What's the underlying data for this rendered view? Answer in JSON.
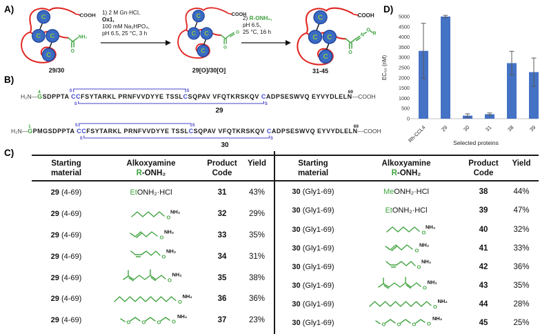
{
  "colors": {
    "green": "#3FA33F",
    "red": "#E02420",
    "cfill": "#3A6BC5",
    "cstroke": "#24479B",
    "cletter": "#8CC63F",
    "cys": "#3F48CC",
    "ss": "#4646C8"
  },
  "panel_labels": {
    "a": "A)",
    "b": "B)",
    "c": "C)",
    "d": "D)"
  },
  "scheme": {
    "cooh": "COOH",
    "nh2": "NH₂",
    "o_label": "O",
    "residue": "C",
    "oxime_n": "N",
    "oxime_o": "O",
    "oxime_r": "R",
    "step1_line1": "1) 2 M Gn·HCl,",
    "step1_line2": "Ox1,",
    "step1_line3": "100 mM Na₂HPO₄,",
    "step1_line4": "pH 6.5, 25 °C, 3 h",
    "step2_prefix": "2) ",
    "step2_reagent": "R-ONH₂,",
    "step2_line2": "pH 6.5,",
    "step2_line3": "25 °C, 16 h",
    "start_label": "29/30",
    "intermediate_label": "29[O]/30[O]",
    "product_label": "31-45"
  },
  "sequences": {
    "ss_label": "S",
    "items": [
      {
        "label": "29",
        "prefix": "H₂N—",
        "start_num": "4",
        "start_res": "G",
        "body": "SDPPTA CCFSYTARKL PRNFVVDYYE TSSLCSQPAV VFQTKRSKQV CADPSESWVQ EYVYDLELN",
        "end_num": "69",
        "suffix": "—COOH"
      },
      {
        "label": "30",
        "prefix": "H₂N—",
        "start_num": "1",
        "start_res": "G",
        "body": "PMGSDPPTA CCFSYTARKL PRNFVVDYYE TSSLCSQPAV VFQTKRSKQV CADPSESWVQ EYVYDLELN",
        "end_num": "69",
        "suffix": "—COOH"
      }
    ]
  },
  "tables": {
    "o_label": "O",
    "nh2_label": "NH₂",
    "headers": {
      "col1_line1": "Starting",
      "col1_line2": "material",
      "col2_line1": "Alkoxyamine",
      "col2_r": "R",
      "col2_rest": "-ONH₂",
      "col3_line1": "Product",
      "col3_line2": "Code",
      "col4": "Yield"
    },
    "left_rows": [
      {
        "sm": "29",
        "range": "(4-69)",
        "struct": "text",
        "reagent_green": "Et",
        "reagent_black": "ONH₂·HCl",
        "code": "31",
        "yield": "43%"
      },
      {
        "sm": "29",
        "range": "(4-69)",
        "struct": "hexyl",
        "code": "32",
        "yield": "29%"
      },
      {
        "sm": "29",
        "range": "(4-69)",
        "struct": "hexenyl_trans",
        "code": "33",
        "yield": "35%"
      },
      {
        "sm": "29",
        "range": "(4-69)",
        "struct": "hexenyl_cis",
        "code": "34",
        "yield": "31%"
      },
      {
        "sm": "29",
        "range": "(4-69)",
        "struct": "geranyl",
        "code": "35",
        "yield": "38%"
      },
      {
        "sm": "29",
        "range": "(4-69)",
        "struct": "dodecyl",
        "code": "36",
        "yield": "36%"
      },
      {
        "sm": "29",
        "range": "(4-69)",
        "struct": "teg",
        "code": "37",
        "yield": "23%"
      }
    ],
    "right_rows": [
      {
        "sm": "30",
        "range": "(Gly1-69)",
        "struct": "text",
        "reagent_green": "Me",
        "reagent_black": "ONH₂·HCl",
        "code": "38",
        "yield": "44%"
      },
      {
        "sm": "30",
        "range": "(Gly1-69)",
        "struct": "text",
        "reagent_green": "Et",
        "reagent_black": "ONH₂·HCl",
        "code": "39",
        "yield": "47%"
      },
      {
        "sm": "30",
        "range": "(Gly1-69)",
        "struct": "hexyl",
        "code": "40",
        "yield": "32%"
      },
      {
        "sm": "30",
        "range": "(Gly1-69)",
        "struct": "hexenyl_trans",
        "code": "41",
        "yield": "33%"
      },
      {
        "sm": "30",
        "range": "(Gly1-69)",
        "struct": "hexenyl_cis",
        "code": "42",
        "yield": "36%"
      },
      {
        "sm": "30",
        "range": "(Gly1-69)",
        "struct": "geranyl",
        "code": "43",
        "yield": "35%"
      },
      {
        "sm": "30",
        "range": "(Gly1-69)",
        "struct": "dodecyl",
        "code": "44",
        "yield": "28%"
      },
      {
        "sm": "30",
        "range": "(Gly1-69)",
        "struct": "teg",
        "code": "45",
        "yield": "25%"
      }
    ]
  },
  "chart_data": {
    "type": "bar",
    "title": "",
    "categories": [
      "Rh-CCL4",
      "29",
      "30",
      "31",
      "38",
      "39"
    ],
    "values": [
      3320,
      5000,
      150,
      220,
      2720,
      2280
    ],
    "errors": [
      1350,
      60,
      90,
      60,
      580,
      690
    ],
    "ylabel": "EC₅₀ (nM)",
    "xlabel": "Selected proteins",
    "ylim": [
      0,
      5000
    ],
    "ytick_step": 500,
    "grid": false,
    "legend": "none",
    "bar_color": "#4472C4"
  }
}
